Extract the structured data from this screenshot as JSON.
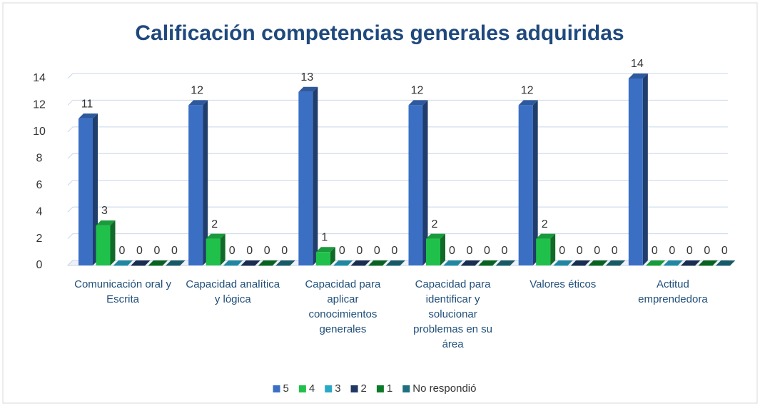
{
  "chart_data": {
    "type": "bar3d",
    "title": "Calificación competencias generales adquiridas",
    "categories": [
      "Comunicación oral y Escrita",
      "Capacidad analítica y lógica",
      "Capacidad para aplicar conocimientos generales",
      "Capacidad para identificar y solucionar problemas en su área",
      "Valores éticos",
      "Actitud emprendedora"
    ],
    "series": [
      {
        "name": "5",
        "color": "#3a6fc4",
        "values": [
          11,
          12,
          13,
          12,
          12,
          14
        ]
      },
      {
        "name": "4",
        "color": "#1fc14a",
        "values": [
          3,
          2,
          1,
          2,
          2,
          0
        ]
      },
      {
        "name": "3",
        "color": "#2aa8c8",
        "values": [
          0,
          0,
          0,
          0,
          0,
          0
        ]
      },
      {
        "name": "2",
        "color": "#1f3864",
        "values": [
          0,
          0,
          0,
          0,
          0,
          0
        ]
      },
      {
        "name": "1",
        "color": "#0d7a2a",
        "values": [
          0,
          0,
          0,
          0,
          0,
          0
        ]
      },
      {
        "name": "No respondió",
        "color": "#1f6f80",
        "values": [
          0,
          0,
          0,
          0,
          0,
          0
        ]
      }
    ],
    "ylim": [
      0,
      14
    ],
    "yticks": [
      0,
      2,
      4,
      6,
      8,
      10,
      12,
      14
    ],
    "grid": true,
    "legend": "bottom"
  }
}
